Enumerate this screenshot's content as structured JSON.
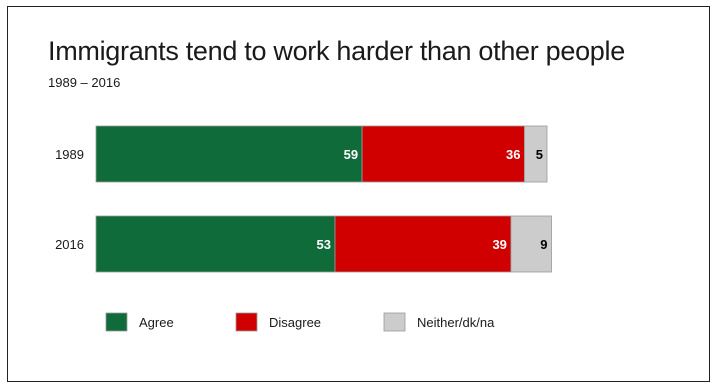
{
  "chart_data": {
    "type": "bar",
    "orientation": "horizontal",
    "stacked": true,
    "title": "Immigrants tend to work harder than other people",
    "subtitle": "1989 – 2016",
    "categories": [
      "1989",
      "2016"
    ],
    "series": [
      {
        "name": "Agree",
        "values": [
          59,
          53
        ],
        "color": "#0f6b3a",
        "label_color": "#ffffff"
      },
      {
        "name": "Disagree",
        "values": [
          36,
          39
        ],
        "color": "#d10000",
        "label_color": "#ffffff"
      },
      {
        "name": "Neither/dk/na",
        "values": [
          5,
          9
        ],
        "color": "#cccccc",
        "label_color": "#000000"
      }
    ],
    "xlim": [
      0,
      100
    ],
    "grid": false,
    "legend_position": "bottom"
  }
}
